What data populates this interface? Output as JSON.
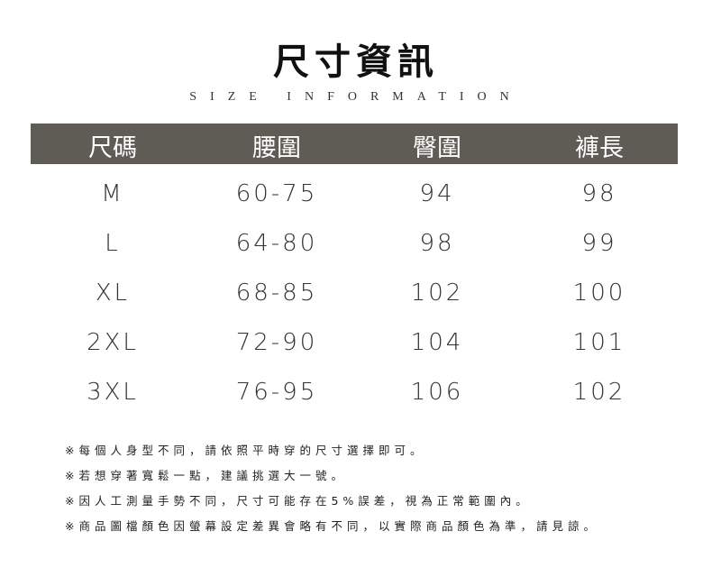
{
  "title": "尺寸資訊",
  "subtitle": "SIZE  INFORMATION",
  "header_color": "#5f5b55",
  "table": {
    "headers": [
      "尺碼",
      "腰圍",
      "臀圍",
      "褲長"
    ],
    "rows": [
      [
        "M",
        "60-75",
        "94",
        "98"
      ],
      [
        "L",
        "64-80",
        "98",
        "99"
      ],
      [
        "XL",
        "68-85",
        "102",
        "100"
      ],
      [
        "2XL",
        "72-90",
        "104",
        "101"
      ],
      [
        "3XL",
        "76-95",
        "106",
        "102"
      ]
    ]
  },
  "notes": [
    "※每個人身型不同，請依照平時穿的尺寸選擇即可。",
    "※若想穿著寬鬆一點，建議挑選大一號。",
    "※因人工測量手勢不同，尺寸可能存在5%誤差，視為正常範圍內。",
    "※商品圖檔顏色因螢幕設定差異會略有不同，以實際商品顏色為準，請見諒。"
  ]
}
